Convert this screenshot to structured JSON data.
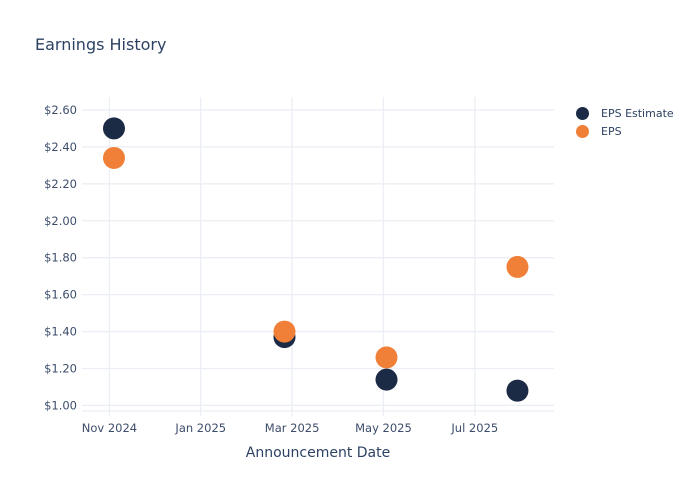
{
  "chart_data": {
    "type": "scatter",
    "title": "Earnings History",
    "xlabel": "Announcement Date",
    "ylabel": "",
    "grid": true,
    "legend_position": "top-right-outside",
    "ylim": [
      0.97,
      2.67
    ],
    "xlim_dates": [
      "2024-10-13",
      "2025-08-23"
    ],
    "y_ticks": [
      {
        "value": 1.0,
        "label": "$1.00"
      },
      {
        "value": 1.2,
        "label": "$1.20"
      },
      {
        "value": 1.4,
        "label": "$1.40"
      },
      {
        "value": 1.6,
        "label": "$1.60"
      },
      {
        "value": 1.8,
        "label": "$1.80"
      },
      {
        "value": 2.0,
        "label": "$2.00"
      },
      {
        "value": 2.2,
        "label": "$2.20"
      },
      {
        "value": 2.4,
        "label": "$2.40"
      },
      {
        "value": 2.6,
        "label": "$2.60"
      }
    ],
    "x_ticks": [
      {
        "date": "2024-11-01",
        "label": "Nov 2024"
      },
      {
        "date": "2025-01-01",
        "label": "Jan 2025"
      },
      {
        "date": "2025-03-01",
        "label": "Mar 2025"
      },
      {
        "date": "2025-05-01",
        "label": "May 2025"
      },
      {
        "date": "2025-07-01",
        "label": "Jul 2025"
      }
    ],
    "series": [
      {
        "name": "EPS Estimate",
        "color": "#1b2a45",
        "marker": "circle",
        "points": [
          {
            "date": "2024-11-04",
            "value": 2.5
          },
          {
            "date": "2025-02-26",
            "value": 1.37
          },
          {
            "date": "2025-05-03",
            "value": 1.14
          },
          {
            "date": "2025-07-29",
            "value": 1.08
          }
        ]
      },
      {
        "name": "EPS",
        "color": "#f08038",
        "marker": "circle",
        "points": [
          {
            "date": "2024-11-04",
            "value": 2.34
          },
          {
            "date": "2025-02-26",
            "value": 1.4
          },
          {
            "date": "2025-05-03",
            "value": 1.26
          },
          {
            "date": "2025-07-29",
            "value": 1.75
          }
        ]
      }
    ]
  },
  "colors": {
    "grid": "#ebeef5",
    "tick_text": "#3d4d6b",
    "title_text": "#2d4263",
    "background": "#ffffff"
  }
}
